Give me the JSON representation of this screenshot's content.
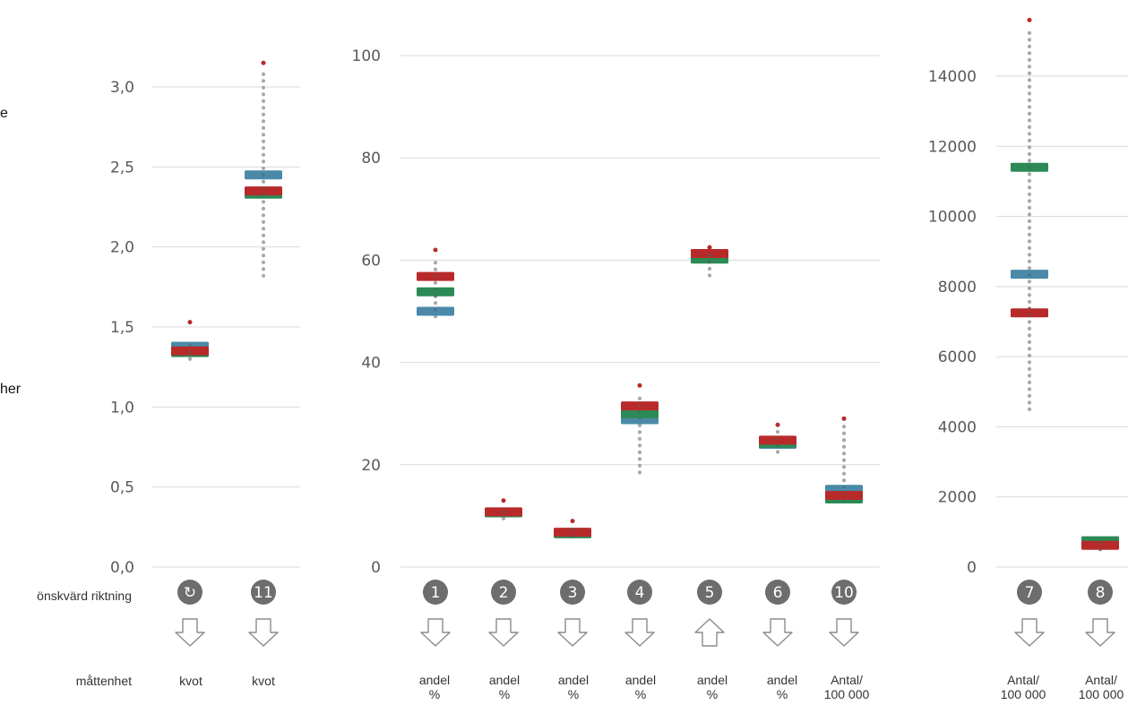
{
  "chart_data": [
    {
      "type": "box",
      "panel": "kvot",
      "ylim": [
        0,
        3.2
      ],
      "ticks": [
        "0,0",
        "0,5",
        "1,0",
        "1,5",
        "2,0",
        "2,5",
        "3,0"
      ],
      "tick_values": [
        0,
        0.5,
        1.0,
        1.5,
        2.0,
        2.5,
        3.0
      ],
      "indicators": [
        {
          "id": "9",
          "icon": "refresh-icon",
          "unit": "kvot",
          "direction": "down",
          "dist": [
            1.3,
            1.42
          ],
          "outlier": 1.53,
          "blue": 1.38,
          "green": 1.34,
          "red": 1.35
        },
        {
          "id": "11",
          "icon": "number-badge",
          "unit": "kvot",
          "direction": "down",
          "dist": [
            1.82,
            3.1
          ],
          "outlier": 3.15,
          "blue": 2.45,
          "green": 2.33,
          "red": 2.35
        }
      ]
    },
    {
      "type": "box",
      "panel": "andel",
      "ylim": [
        0,
        100
      ],
      "ticks": [
        "0",
        "20",
        "40",
        "60",
        "80",
        "100"
      ],
      "tick_values": [
        0,
        20,
        40,
        60,
        80,
        100
      ],
      "indicators": [
        {
          "id": "1",
          "unit": "andel %",
          "direction": "down",
          "dist": [
            49,
            60
          ],
          "outlier": 62,
          "blue": 50,
          "green": 53.8,
          "red": 56.8
        },
        {
          "id": "2",
          "unit": "andel %",
          "direction": "down",
          "dist": [
            9.5,
            11.5
          ],
          "outlier": 13,
          "blue": null,
          "green": 10.6,
          "red": 10.8
        },
        {
          "id": "3",
          "unit": "andel %",
          "direction": "down",
          "dist": [
            6,
            8
          ],
          "outlier": 9,
          "blue": null,
          "green": 6.5,
          "red": 6.8
        },
        {
          "id": "4",
          "unit": "andel %",
          "direction": "down",
          "dist": [
            18.5,
            34
          ],
          "outlier": 35.5,
          "blue": 28.8,
          "green": 30,
          "red": 31.5
        },
        {
          "id": "5",
          "unit": "andel %",
          "direction": "up",
          "dist": [
            57,
            62
          ],
          "outlier": 62.5,
          "blue": 60.5,
          "green": 60.2,
          "red": 61.3
        },
        {
          "id": "6",
          "unit": "andel %",
          "direction": "down",
          "dist": [
            22.5,
            26.5
          ],
          "outlier": 27.8,
          "blue": 24,
          "green": 24.2,
          "red": 24.8
        },
        {
          "id": "10",
          "unit": "Antal/ 100 000",
          "direction": "down",
          "dist": [
            13,
            28
          ],
          "outlier": 29,
          "blue": 15.2,
          "green": 13.3,
          "red": 14
        }
      ]
    },
    {
      "type": "box",
      "panel": "antal",
      "ylim": [
        0,
        15000
      ],
      "ticks": [
        "0",
        "2000",
        "4000",
        "6000",
        "8000",
        "10000",
        "12000",
        "14000"
      ],
      "tick_values": [
        0,
        2000,
        4000,
        6000,
        8000,
        10000,
        12000,
        14000
      ],
      "indicators": [
        {
          "id": "7",
          "unit": "Antal/ 100 000",
          "direction": "down",
          "dist": [
            4500,
            15400
          ],
          "outlier": 15600,
          "blue": 8350,
          "green": 11400,
          "red": 7250
        },
        {
          "id": "8",
          "unit": "Antal/ 100 000",
          "direction": "down",
          "dist": [
            500,
            850
          ],
          "outlier": null,
          "blue": null,
          "green": 750,
          "red": 620
        }
      ]
    }
  ],
  "labels": {
    "direction_row": "önskvärd riktning",
    "unit_row": "måttenhet",
    "cut_text_1": "e",
    "cut_text_2": "her"
  },
  "units": {
    "i9": "kvot",
    "i11": "kvot",
    "i1_a": "andel",
    "i1_b": "%",
    "i2_a": "andel",
    "i2_b": "%",
    "i3_a": "andel",
    "i3_b": "%",
    "i4_a": "andel",
    "i4_b": "%",
    "i5_a": "andel",
    "i5_b": "%",
    "i6_a": "andel",
    "i6_b": "%",
    "i10_a": "Antal/",
    "i10_b": "100 000",
    "i7_a": "Antal/",
    "i7_b": "100 000",
    "i8_a": "Antal/",
    "i8_b": "100 000"
  },
  "colors": {
    "blue": "#4a8aa8",
    "green": "#2b8a55",
    "red": "#b82a2a",
    "dots": "#a8a8a8",
    "grid": "#d9d9d9",
    "badge": "#6d6d6d"
  }
}
